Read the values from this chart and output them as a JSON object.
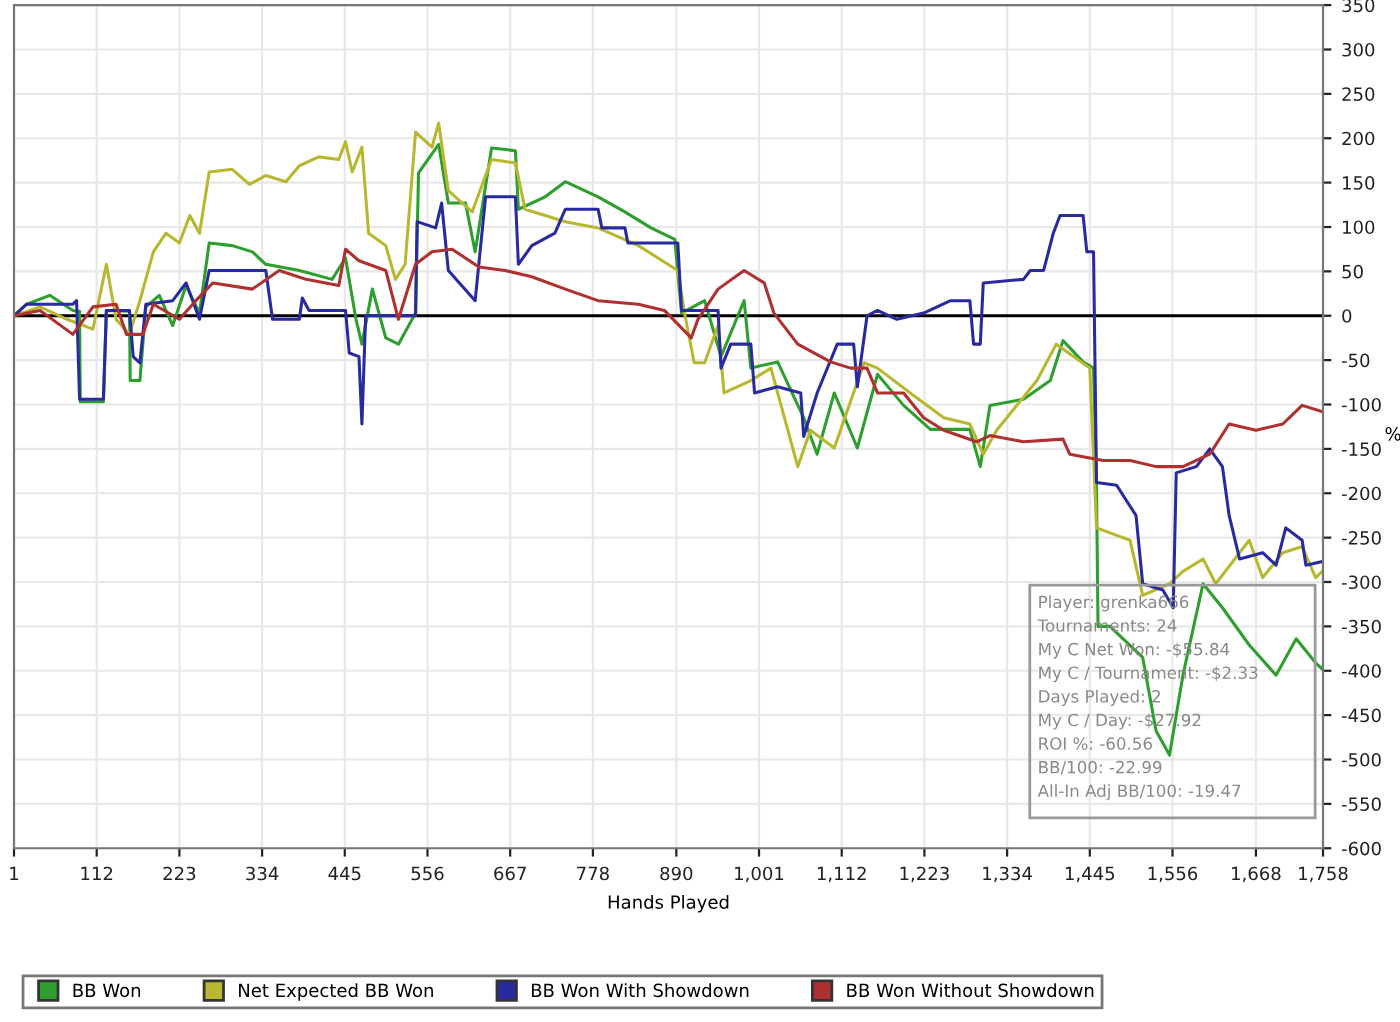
{
  "chart_data": {
    "type": "line",
    "xlabel": "Hands Played",
    "ylabel": "%",
    "xlim": [
      1,
      1758
    ],
    "ylim": [
      -600,
      350
    ],
    "xticks": [
      1,
      112,
      223,
      334,
      445,
      556,
      667,
      778,
      890,
      {
        "value": 1001,
        "label": "1,001"
      },
      {
        "value": 1112,
        "label": "1,112"
      },
      {
        "value": 1223,
        "label": "1,223"
      },
      {
        "value": 1334,
        "label": "1,334"
      },
      {
        "value": 1445,
        "label": "1,445"
      },
      {
        "value": 1556,
        "label": "1,556"
      },
      {
        "value": 1668,
        "label": "1,668"
      },
      {
        "value": 1758,
        "label": "1,758"
      }
    ],
    "yticks": [
      -600,
      -550,
      -500,
      -450,
      -400,
      -350,
      -300,
      -250,
      -200,
      -150,
      -100,
      -50,
      0,
      50,
      100,
      150,
      200,
      250,
      300,
      350
    ],
    "grid": true,
    "legend": "bottom",
    "marker": "none",
    "line_style": "solid",
    "ref_lines": [
      {
        "axis": "y",
        "value": 0,
        "color": "#000000"
      }
    ],
    "annotations": [
      "Player: grenka666",
      "Tournaments: 24",
      "My C Net Won: -$55.84",
      "My C / Tournament: -$2.33",
      "Days Played: 2",
      "My C / Day: -$27.92",
      "ROI %: -60.56",
      "BB/100: -22.99",
      "All-In Adj BB/100: -19.47"
    ],
    "series": [
      {
        "name": "BB Won",
        "color": "#2e9e2e",
        "x": [
          1,
          18,
          49,
          80,
          89,
          90,
          121,
          125,
          156,
          157,
          170,
          178,
          196,
          214,
          232,
          250,
          263,
          294,
          321,
          339,
          384,
          428,
          446,
          460,
          468,
          482,
          500,
          517,
          540,
          544,
          571,
          584,
          607,
          620,
          642,
          674,
          678,
          714,
          741,
          785,
          821,
          856,
          888,
          897,
          928,
          950,
          981,
          990,
          1026,
          1061,
          1079,
          1102,
          1133,
          1160,
          1195,
          1231,
          1284,
          1298,
          1311,
          1356,
          1392,
          1409,
          1436,
          1450,
          1454,
          1456,
          1472,
          1516,
          1534,
          1552,
          1570,
          1597,
          1623,
          1659,
          1695,
          1722,
          1748,
          1757
        ],
        "values": [
          0,
          13,
          23,
          6,
          5,
          -97,
          -97,
          6,
          5,
          -73,
          -73,
          10,
          23,
          -11,
          34,
          3,
          82,
          79,
          72,
          58,
          51,
          41,
          65,
          -4,
          -32,
          30,
          -25,
          -32,
          3,
          161,
          193,
          127,
          127,
          72,
          189,
          186,
          120,
          134,
          151,
          134,
          117,
          99,
          86,
          3,
          17,
          -46,
          17,
          -59,
          -52,
          -115,
          -156,
          -87,
          -149,
          -66,
          -101,
          -128,
          -128,
          -170,
          -101,
          -94,
          -73,
          -28,
          -52,
          -59,
          -191,
          -350,
          -350,
          -385,
          -468,
          -495,
          -405,
          -302,
          -329,
          -371,
          -405,
          -364,
          -391,
          -398
        ]
      },
      {
        "name": "Net Expected BB Won",
        "color": "#b8b830",
        "x": [
          1,
          36,
          72,
          107,
          125,
          138,
          156,
          170,
          188,
          205,
          223,
          237,
          250,
          263,
          294,
          317,
          339,
          366,
          384,
          410,
          437,
          446,
          455,
          468,
          477,
          500,
          513,
          526,
          540,
          562,
          571,
          584,
          616,
          642,
          674,
          687,
          741,
          785,
          839,
          892,
          901,
          914,
          928,
          946,
          954,
          990,
          1017,
          1053,
          1070,
          1102,
          1142,
          1160,
          1204,
          1249,
          1284,
          1302,
          1320,
          1374,
          1400,
          1445,
          1454,
          1499,
          1516,
          1552,
          1570,
          1597,
          1614,
          1659,
          1677,
          1704,
          1730,
          1748,
          1757
        ],
        "values": [
          0,
          10,
          -4,
          -15,
          58,
          -4,
          -21,
          17,
          72,
          93,
          82,
          113,
          93,
          162,
          165,
          148,
          158,
          151,
          169,
          179,
          176,
          196,
          162,
          190,
          93,
          79,
          41,
          58,
          207,
          190,
          217,
          141,
          117,
          176,
          172,
          120,
          106,
          99,
          79,
          51,
          3,
          -53,
          -53,
          -11,
          -87,
          -73,
          -59,
          -170,
          -129,
          -149,
          -53,
          -59,
          -87,
          -115,
          -122,
          -156,
          -129,
          -73,
          -32,
          -59,
          -239,
          -253,
          -315,
          -302,
          -288,
          -274,
          -302,
          -253,
          -295,
          -267,
          -260,
          -295,
          -288
        ]
      },
      {
        "name": "BB Won With Showdown",
        "color": "#2a2aa0",
        "x": [
          1,
          18,
          80,
          85,
          89,
          121,
          125,
          156,
          161,
          170,
          178,
          214,
          232,
          250,
          263,
          339,
          348,
          384,
          388,
          397,
          446,
          451,
          464,
          468,
          473,
          517,
          540,
          542,
          567,
          575,
          584,
          620,
          634,
          674,
          678,
          696,
          727,
          741,
          785,
          790,
          821,
          825,
          892,
          897,
          946,
          950,
          963,
          990,
          995,
          1026,
          1057,
          1061,
          1079,
          1106,
          1128,
          1133,
          1146,
          1160,
          1186,
          1222,
          1258,
          1284,
          1289,
          1298,
          1302,
          1356,
          1365,
          1383,
          1396,
          1405,
          1436,
          1441,
          1450,
          1454,
          1481,
          1507,
          1516,
          1543,
          1557,
          1561,
          1588,
          1606,
          1623,
          1632,
          1646,
          1677,
          1695,
          1708,
          1730,
          1735,
          1757
        ],
        "values": [
          0,
          13,
          13,
          17,
          -94,
          -94,
          6,
          6,
          -46,
          -53,
          13,
          17,
          37,
          -4,
          51,
          51,
          -4,
          -4,
          20,
          6,
          6,
          -42,
          -46,
          -122,
          0,
          0,
          0,
          106,
          99,
          127,
          51,
          17,
          134,
          134,
          58,
          79,
          93,
          120,
          120,
          99,
          99,
          82,
          82,
          6,
          6,
          -59,
          -32,
          -32,
          -87,
          -80,
          -87,
          -136,
          -87,
          -32,
          -32,
          -80,
          0,
          6,
          -4,
          3,
          17,
          17,
          -32,
          -32,
          37,
          41,
          51,
          51,
          93,
          113,
          113,
          72,
          72,
          -188,
          -191,
          -225,
          -302,
          -309,
          -329,
          -177,
          -170,
          -150,
          -170,
          -225,
          -274,
          -267,
          -281,
          -239,
          -253,
          -281,
          -277
        ]
      },
      {
        "name": "BB Won Without Showdown",
        "color": "#b03030",
        "x": [
          1,
          36,
          80,
          107,
          138,
          152,
          174,
          188,
          223,
          245,
          268,
          321,
          357,
          393,
          437,
          446,
          464,
          500,
          517,
          540,
          562,
          589,
          625,
          660,
          696,
          741,
          785,
          839,
          874,
          910,
          919,
          946,
          981,
          1008,
          1021,
          1053,
          1097,
          1124,
          1146,
          1160,
          1195,
          1222,
          1249,
          1293,
          1311,
          1356,
          1409,
          1418,
          1463,
          1499,
          1534,
          1570,
          1606,
          1632,
          1668,
          1704,
          1730,
          1757
        ],
        "values": [
          0,
          6,
          -21,
          10,
          13,
          -21,
          -21,
          13,
          -4,
          17,
          37,
          30,
          51,
          41,
          34,
          75,
          62,
          51,
          -4,
          58,
          72,
          75,
          55,
          51,
          44,
          30,
          17,
          13,
          6,
          -25,
          -4,
          30,
          51,
          37,
          3,
          -32,
          -52,
          -59,
          -59,
          -87,
          -87,
          -115,
          -129,
          -142,
          -135,
          -142,
          -139,
          -156,
          -163,
          -163,
          -170,
          -170,
          -156,
          -122,
          -129,
          -122,
          -101,
          -108
        ]
      }
    ]
  }
}
